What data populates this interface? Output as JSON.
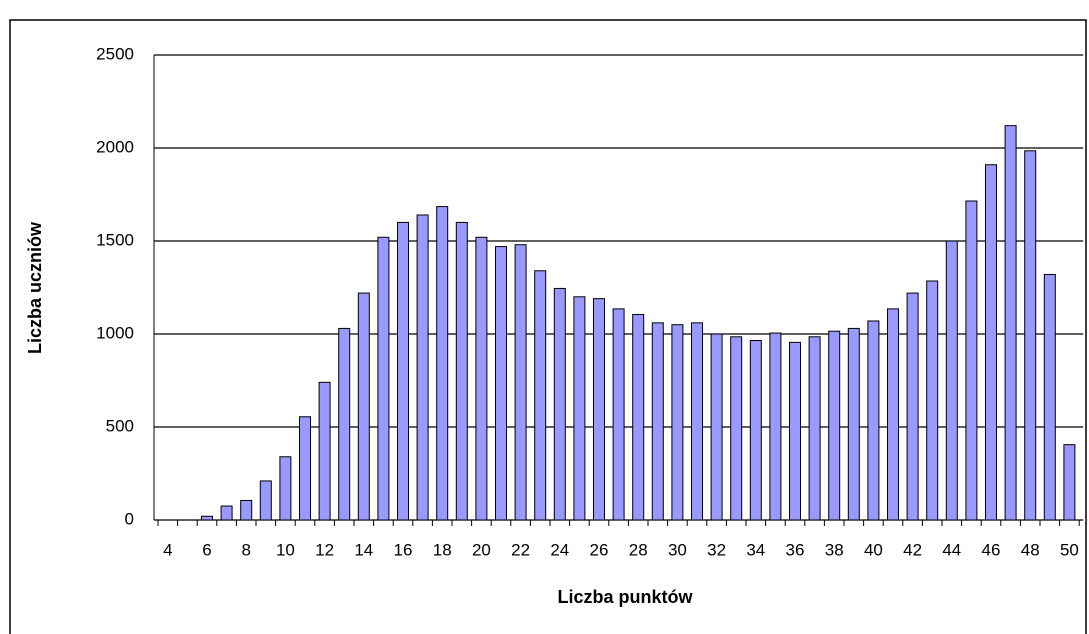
{
  "chart_data": {
    "type": "bar",
    "x_label": "Liczba punktów",
    "y_label": "Liczba uczniów",
    "categories": [
      "4",
      null,
      "6",
      null,
      "8",
      null,
      "10",
      null,
      "12",
      null,
      "14",
      null,
      "16",
      null,
      "18",
      null,
      "20",
      null,
      "22",
      null,
      "24",
      null,
      "26",
      null,
      "28",
      null,
      "30",
      null,
      "32",
      null,
      "34",
      null,
      "36",
      null,
      "38",
      null,
      "40",
      null,
      "42",
      null,
      "44",
      null,
      "46",
      null,
      "48",
      null,
      "50"
    ],
    "values": [
      0,
      0,
      20,
      75,
      105,
      210,
      340,
      555,
      740,
      1030,
      1220,
      1520,
      1600,
      1640,
      1685,
      1600,
      1520,
      1470,
      1480,
      1340,
      1245,
      1200,
      1190,
      1135,
      1105,
      1060,
      1050,
      1060,
      1000,
      985,
      965,
      1005,
      955,
      985,
      1015,
      1030,
      1070,
      1135,
      1220,
      1285,
      1500,
      1715,
      1910,
      2120,
      1985,
      1320,
      405
    ],
    "color": "#9999ff",
    "ylim": [
      0,
      2500
    ],
    "yticks": [
      0,
      500,
      1000,
      1500,
      2000,
      2500
    ],
    "grid": true
  }
}
